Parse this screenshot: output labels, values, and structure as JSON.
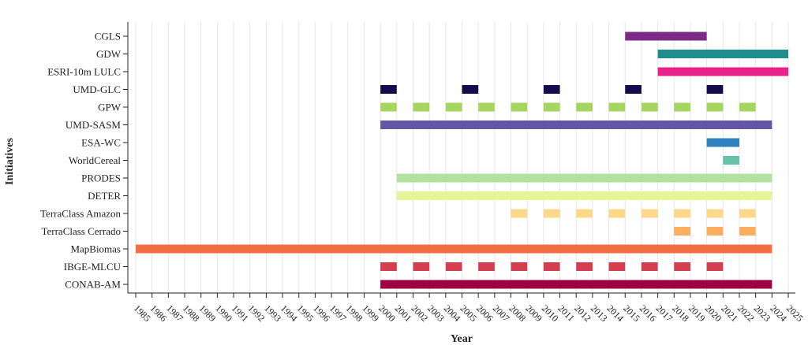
{
  "chart_data": {
    "type": "timeline-bar",
    "title": "",
    "xlabel": "Year",
    "ylabel": "Initiatives",
    "xlim": [
      1985,
      2025
    ],
    "xticks": [
      1985,
      1986,
      1987,
      1988,
      1989,
      1990,
      1991,
      1992,
      1993,
      1994,
      1995,
      1996,
      1997,
      1998,
      1999,
      2000,
      2001,
      2002,
      2003,
      2004,
      2005,
      2006,
      2007,
      2008,
      2009,
      2010,
      2011,
      2012,
      2013,
      2014,
      2015,
      2016,
      2017,
      2018,
      2019,
      2020,
      2021,
      2022,
      2023,
      2024,
      2025
    ],
    "grid": true,
    "series": [
      {
        "name": "CGLS",
        "color": "#7b2a85",
        "segments": [
          [
            2015,
            2020
          ]
        ]
      },
      {
        "name": "GDW",
        "color": "#1f8c8e",
        "segments": [
          [
            2017,
            2025
          ]
        ]
      },
      {
        "name": "ESRI-10m LULC",
        "color": "#e8228a",
        "segments": [
          [
            2017,
            2025
          ]
        ]
      },
      {
        "name": "UMD-GLC",
        "color": "#160a4a",
        "segments": [
          [
            2000,
            2001
          ],
          [
            2005,
            2006
          ],
          [
            2010,
            2011
          ],
          [
            2015,
            2016
          ],
          [
            2020,
            2021
          ]
        ]
      },
      {
        "name": "GPW",
        "color": "#a5d65f",
        "segments": [
          [
            2000,
            2001
          ],
          [
            2002,
            2003
          ],
          [
            2004,
            2005
          ],
          [
            2006,
            2007
          ],
          [
            2008,
            2009
          ],
          [
            2010,
            2011
          ],
          [
            2012,
            2013
          ],
          [
            2014,
            2015
          ],
          [
            2016,
            2017
          ],
          [
            2018,
            2019
          ],
          [
            2020,
            2021
          ],
          [
            2022,
            2023
          ]
        ]
      },
      {
        "name": "UMD-SASM",
        "color": "#6455a6",
        "segments": [
          [
            2000,
            2024
          ]
        ]
      },
      {
        "name": "ESA-WC",
        "color": "#2f80bf",
        "segments": [
          [
            2020,
            2022
          ]
        ]
      },
      {
        "name": "WorldCereal",
        "color": "#66c2a5",
        "segments": [
          [
            2021,
            2022
          ]
        ]
      },
      {
        "name": "PRODES",
        "color": "#b2e1a1",
        "segments": [
          [
            2001,
            2024
          ]
        ]
      },
      {
        "name": "DETER",
        "color": "#e6f598",
        "segments": [
          [
            2001,
            2024
          ]
        ]
      },
      {
        "name": "TerraClass Amazon",
        "color": "#fdd88a",
        "segments": [
          [
            2008,
            2009
          ],
          [
            2010,
            2011
          ],
          [
            2012,
            2013
          ],
          [
            2014,
            2015
          ],
          [
            2016,
            2017
          ],
          [
            2018,
            2019
          ],
          [
            2020,
            2021
          ],
          [
            2022,
            2023
          ]
        ]
      },
      {
        "name": "TerraClass Cerrado",
        "color": "#fdae61",
        "segments": [
          [
            2018,
            2019
          ],
          [
            2020,
            2021
          ],
          [
            2022,
            2023
          ]
        ]
      },
      {
        "name": "MapBiomas",
        "color": "#f46d43",
        "segments": [
          [
            1985,
            2024
          ]
        ]
      },
      {
        "name": "IBGE-MLCU",
        "color": "#d53e4f",
        "segments": [
          [
            2000,
            2001
          ],
          [
            2002,
            2003
          ],
          [
            2004,
            2005
          ],
          [
            2006,
            2007
          ],
          [
            2008,
            2009
          ],
          [
            2010,
            2011
          ],
          [
            2012,
            2013
          ],
          [
            2014,
            2015
          ],
          [
            2016,
            2017
          ],
          [
            2018,
            2019
          ],
          [
            2020,
            2021
          ]
        ]
      },
      {
        "name": "CONAB-AM",
        "color": "#9e0142",
        "segments": [
          [
            2000,
            2024
          ]
        ]
      }
    ]
  }
}
